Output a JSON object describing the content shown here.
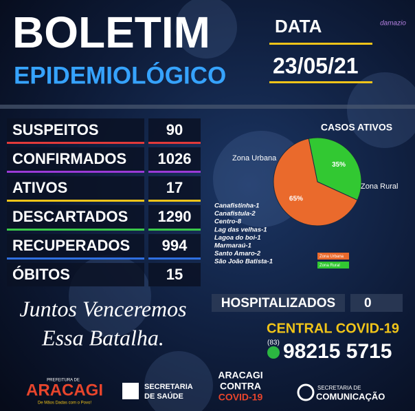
{
  "header": {
    "title": "BOLETIM",
    "subtitle": "EPIDEMIOLÓGICO",
    "date_label": "DATA",
    "date": "23/05/21",
    "brand": "damazio"
  },
  "table": {
    "rows": [
      [
        "SUSPEITOS",
        90
      ],
      [
        "CONFIRMADOS",
        1026
      ],
      [
        "ATIVOS",
        17
      ],
      [
        "DESCARTADOS",
        1290
      ],
      [
        "RECUPERADOS",
        994
      ],
      [
        "ÓBITOS",
        15
      ]
    ]
  },
  "chart_data": {
    "type": "pie",
    "title": "CASOS ATIVOS",
    "categories": [
      "Zona Urbana",
      "Zona Rural"
    ],
    "values": [
      65,
      35
    ],
    "value_labels": [
      "65%",
      "35%"
    ],
    "colors": [
      "#ea6a2c",
      "#32c832"
    ]
  },
  "districts": [
    "Canafistinha-1",
    "Canafistula-2",
    "Centro-8",
    "Lag das velhas-1",
    "Lagoa do boi-1",
    "Marmaraú-1",
    "Santo Amaro-2",
    "São João Batista-1"
  ],
  "hospital": {
    "label": "HOSPITALIZADOS",
    "value": 0
  },
  "central": {
    "title": "CENTRAL COVID-19",
    "area_code": "(83)",
    "phone": "98215 5715"
  },
  "slogan": [
    "Juntos Venceremos",
    "Essa Batalha."
  ],
  "footer": {
    "prefeitura_top": "PREFEITURA DE",
    "prefeitura_name": "ARACAGI",
    "prefeitura_motto": "De Mãos Dadas com o Povo!",
    "saude_top": "SECRETARIA",
    "saude_bottom": "DE SAÚDE",
    "campaign": [
      "ARACAGI",
      "CONTRA",
      "COVID-19"
    ],
    "comunicacao_top": "SECRETARIA DE",
    "comunicacao_bottom": "COMUNICAÇÃO"
  }
}
